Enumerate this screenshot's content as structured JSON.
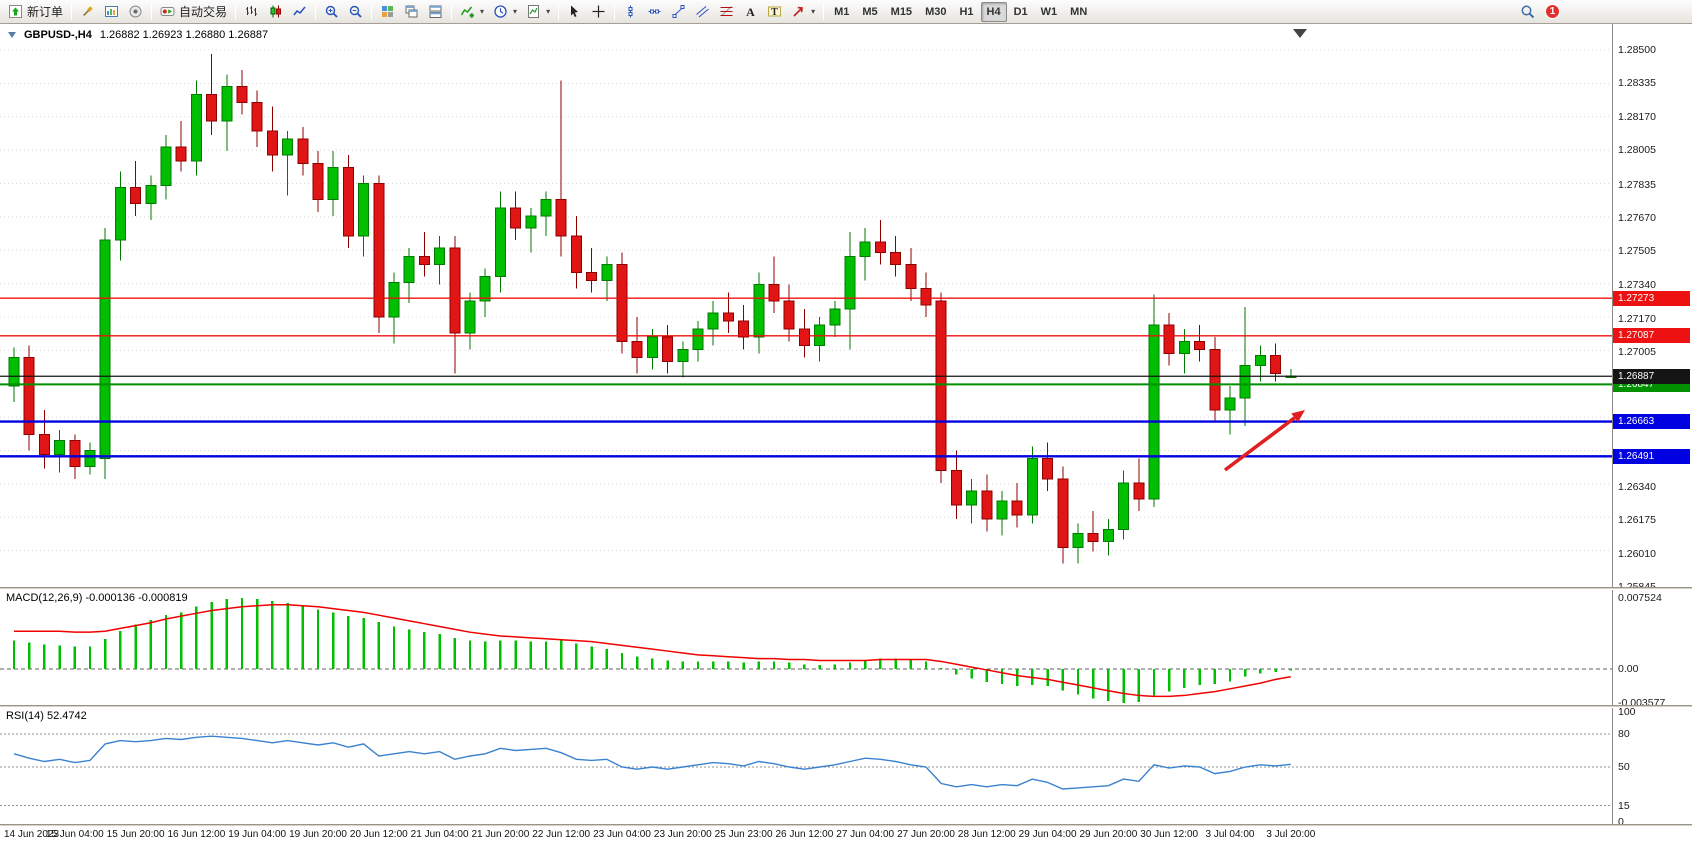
{
  "toolbar": {
    "new_order_label": "新订单",
    "auto_trading_label": "自动交易",
    "notification_count": "1",
    "timeframes": [
      {
        "label": "M1",
        "active": false
      },
      {
        "label": "M5",
        "active": false
      },
      {
        "label": "M15",
        "active": false
      },
      {
        "label": "M30",
        "active": false
      },
      {
        "label": "H1",
        "active": false
      },
      {
        "label": "H4",
        "active": true
      },
      {
        "label": "D1",
        "active": false
      },
      {
        "label": "W1",
        "active": false
      },
      {
        "label": "MN",
        "active": false
      }
    ]
  },
  "chart": {
    "title_symbol": "GBPUSD-,H4",
    "title_ohlc": "1.26882 1.26923 1.26880 1.26887"
  },
  "indicators": {
    "macd_label": "MACD(12,26,9) -0.000136 -0.000819",
    "rsi_label": "RSI(14) 52.4742"
  },
  "chart_data": {
    "type": "candlestick",
    "symbol": "GBPUSD-",
    "timeframe": "H4",
    "current_ohlc": [
      1.26882,
      1.26923,
      1.2688,
      1.26887
    ],
    "price_range": {
      "top": 1.285,
      "bottom": 1.25845
    },
    "price_axis_labels": [
      "1.28500",
      "1.28335",
      "1.28170",
      "1.28005",
      "1.27835",
      "1.27670",
      "1.27505",
      "1.27340",
      "1.27170",
      "1.27005",
      "1.26340",
      "1.26175",
      "1.26010",
      "1.25845"
    ],
    "price_lines": [
      {
        "price": 1.27273,
        "label": "1.27273",
        "color": "#ee1111",
        "width": 1.4
      },
      {
        "price": 1.27087,
        "label": "1.27087",
        "color": "#ee1111",
        "width": 1.4
      },
      {
        "price": 1.26847,
        "label": "1.26847",
        "color": "#009000",
        "width": 2
      },
      {
        "price": 1.26887,
        "label": "1.26887",
        "color": "#151515",
        "width": 1.2
      },
      {
        "price": 1.26663,
        "label": "1.26663",
        "color": "#0000e0",
        "width": 2.4
      },
      {
        "price": 1.26491,
        "label": "1.26491",
        "color": "#0000e0",
        "width": 2.4
      }
    ],
    "time_labels": [
      "14 Jun 2023",
      "15 Jun 04:00",
      "15 Jun 20:00",
      "16 Jun 12:00",
      "19 Jun 04:00",
      "19 Jun 20:00",
      "20 Jun 12:00",
      "21 Jun 04:00",
      "21 Jun 20:00",
      "22 Jun 12:00",
      "23 Jun 04:00",
      "23 Jun 20:00",
      "25 Jun 23:00",
      "26 Jun 12:00",
      "27 Jun 04:00",
      "27 Jun 20:00",
      "28 Jun 12:00",
      "29 Jun 04:00",
      "29 Jun 20:00",
      "30 Jun 12:00",
      "3 Jul 04:00",
      "3 Jul 20:00"
    ],
    "candles": [
      [
        1.2684,
        1.2703,
        1.2676,
        1.2698
      ],
      [
        1.2698,
        1.2704,
        1.2652,
        1.266
      ],
      [
        1.266,
        1.2672,
        1.2643,
        1.265
      ],
      [
        1.265,
        1.2662,
        1.2641,
        1.2657
      ],
      [
        1.2657,
        1.266,
        1.2638,
        1.2644
      ],
      [
        1.2644,
        1.2656,
        1.264,
        1.2652
      ],
      [
        1.2648,
        1.2762,
        1.2638,
        1.2756
      ],
      [
        1.2756,
        1.279,
        1.2746,
        1.2782
      ],
      [
        1.2782,
        1.2795,
        1.2768,
        1.2774
      ],
      [
        1.2774,
        1.2788,
        1.2766,
        1.2783
      ],
      [
        1.2783,
        1.2808,
        1.2776,
        1.2802
      ],
      [
        1.2802,
        1.2815,
        1.279,
        1.2795
      ],
      [
        1.2795,
        1.2835,
        1.2788,
        1.2828
      ],
      [
        1.2828,
        1.2848,
        1.2808,
        1.2815
      ],
      [
        1.2815,
        1.2838,
        1.28,
        1.2832
      ],
      [
        1.2832,
        1.284,
        1.2818,
        1.2824
      ],
      [
        1.2824,
        1.283,
        1.2802,
        1.281
      ],
      [
        1.281,
        1.2822,
        1.279,
        1.2798
      ],
      [
        1.2798,
        1.281,
        1.2778,
        1.2806
      ],
      [
        1.2806,
        1.2812,
        1.2788,
        1.2794
      ],
      [
        1.2794,
        1.28,
        1.277,
        1.2776
      ],
      [
        1.2776,
        1.28,
        1.2768,
        1.2792
      ],
      [
        1.2792,
        1.2798,
        1.2752,
        1.2758
      ],
      [
        1.2758,
        1.2788,
        1.2748,
        1.2784
      ],
      [
        1.2784,
        1.2788,
        1.271,
        1.2718
      ],
      [
        1.2718,
        1.274,
        1.2705,
        1.2735
      ],
      [
        1.2735,
        1.2752,
        1.2725,
        1.2748
      ],
      [
        1.2748,
        1.276,
        1.2738,
        1.2744
      ],
      [
        1.2744,
        1.2758,
        1.2734,
        1.2752
      ],
      [
        1.2752,
        1.2758,
        1.269,
        1.271
      ],
      [
        1.271,
        1.273,
        1.2702,
        1.2726
      ],
      [
        1.2726,
        1.2742,
        1.2718,
        1.2738
      ],
      [
        1.2738,
        1.278,
        1.273,
        1.2772
      ],
      [
        1.2772,
        1.278,
        1.2756,
        1.2762
      ],
      [
        1.2762,
        1.2772,
        1.275,
        1.2768
      ],
      [
        1.2768,
        1.278,
        1.2758,
        1.2776
      ],
      [
        1.2776,
        1.2835,
        1.2748,
        1.2758
      ],
      [
        1.2758,
        1.2768,
        1.2732,
        1.274
      ],
      [
        1.274,
        1.2752,
        1.273,
        1.2736
      ],
      [
        1.2736,
        1.2748,
        1.2726,
        1.2744
      ],
      [
        1.2744,
        1.275,
        1.27,
        1.2706
      ],
      [
        1.2706,
        1.2718,
        1.269,
        1.2698
      ],
      [
        1.2698,
        1.2712,
        1.2692,
        1.2708
      ],
      [
        1.2708,
        1.2714,
        1.269,
        1.2696
      ],
      [
        1.2696,
        1.2706,
        1.2688,
        1.2702
      ],
      [
        1.2702,
        1.2716,
        1.2696,
        1.2712
      ],
      [
        1.2712,
        1.2726,
        1.2704,
        1.272
      ],
      [
        1.272,
        1.273,
        1.271,
        1.2716
      ],
      [
        1.2716,
        1.2724,
        1.2702,
        1.2708
      ],
      [
        1.2708,
        1.274,
        1.27,
        1.2734
      ],
      [
        1.2734,
        1.2748,
        1.272,
        1.2726
      ],
      [
        1.2726,
        1.2734,
        1.2706,
        1.2712
      ],
      [
        1.2712,
        1.2722,
        1.2698,
        1.2704
      ],
      [
        1.2704,
        1.2718,
        1.2696,
        1.2714
      ],
      [
        1.2714,
        1.2726,
        1.2708,
        1.2722
      ],
      [
        1.2722,
        1.276,
        1.2702,
        1.2748
      ],
      [
        1.2748,
        1.2762,
        1.2736,
        1.2755
      ],
      [
        1.2755,
        1.2766,
        1.2744,
        1.275
      ],
      [
        1.275,
        1.2758,
        1.2738,
        1.2744
      ],
      [
        1.2744,
        1.2752,
        1.2726,
        1.2732
      ],
      [
        1.2732,
        1.274,
        1.2718,
        1.2724
      ],
      [
        1.2726,
        1.273,
        1.2636,
        1.2642
      ],
      [
        1.2642,
        1.2652,
        1.2618,
        1.2625
      ],
      [
        1.2625,
        1.2638,
        1.2616,
        1.2632
      ],
      [
        1.2632,
        1.264,
        1.2612,
        1.2618
      ],
      [
        1.2618,
        1.2632,
        1.261,
        1.2627
      ],
      [
        1.2627,
        1.2636,
        1.2614,
        1.262
      ],
      [
        1.262,
        1.2654,
        1.2616,
        1.2648
      ],
      [
        1.2648,
        1.2656,
        1.2632,
        1.2638
      ],
      [
        1.2638,
        1.2644,
        1.2596,
        1.2604
      ],
      [
        1.2604,
        1.2616,
        1.2596,
        1.2611
      ],
      [
        1.2611,
        1.2622,
        1.2602,
        1.2607
      ],
      [
        1.2607,
        1.2618,
        1.26,
        1.2613
      ],
      [
        1.2613,
        1.2642,
        1.2608,
        1.2636
      ],
      [
        1.2636,
        1.2648,
        1.2622,
        1.2628
      ],
      [
        1.2628,
        1.2729,
        1.2624,
        1.2714
      ],
      [
        1.2714,
        1.272,
        1.2694,
        1.27
      ],
      [
        1.27,
        1.2712,
        1.269,
        1.2706
      ],
      [
        1.2706,
        1.2714,
        1.2696,
        1.2702
      ],
      [
        1.2702,
        1.2708,
        1.2666,
        1.2672
      ],
      [
        1.2672,
        1.2684,
        1.266,
        1.2678
      ],
      [
        1.2678,
        1.2723,
        1.2664,
        1.2694
      ],
      [
        1.2694,
        1.2704,
        1.2686,
        1.2699
      ],
      [
        1.2699,
        1.2705,
        1.2686,
        1.269
      ],
      [
        1.26882,
        1.26923,
        1.2688,
        1.26887
      ]
    ],
    "macd": {
      "axis_labels": [
        "0.007524",
        "0.00",
        "-0.003577"
      ],
      "zero_level": 0,
      "histogram": [
        0.003,
        0.0028,
        0.0026,
        0.0025,
        0.0024,
        0.0024,
        0.0032,
        0.004,
        0.0047,
        0.0052,
        0.0057,
        0.006,
        0.0066,
        0.0071,
        0.0074,
        0.00752,
        0.0074,
        0.0072,
        0.007,
        0.0067,
        0.0063,
        0.006,
        0.0056,
        0.0054,
        0.005,
        0.0045,
        0.0042,
        0.0039,
        0.0037,
        0.0033,
        0.003,
        0.0029,
        0.003,
        0.003,
        0.0029,
        0.0029,
        0.003,
        0.0027,
        0.0024,
        0.0021,
        0.0017,
        0.0013,
        0.0011,
        0.0009,
        0.0008,
        0.0008,
        0.0008,
        0.0008,
        0.0007,
        0.0008,
        0.0008,
        0.0007,
        0.0005,
        0.0004,
        0.0005,
        0.0007,
        0.0009,
        0.0011,
        0.0011,
        0.001,
        0.0008,
        0.0001,
        -0.0006,
        -0.001,
        -0.0014,
        -0.0016,
        -0.0018,
        -0.0017,
        -0.0018,
        -0.0023,
        -0.0027,
        -0.0031,
        -0.0034,
        -0.00358,
        -0.0035,
        -0.0028,
        -0.0024,
        -0.002,
        -0.0017,
        -0.0016,
        -0.0013,
        -0.0008,
        -0.0005,
        -0.0003,
        -0.000136
      ],
      "signal": [
        0.004,
        0.004,
        0.004,
        0.004,
        0.0039,
        0.0039,
        0.004,
        0.0043,
        0.0046,
        0.0049,
        0.0053,
        0.0056,
        0.0059,
        0.0062,
        0.0064,
        0.0066,
        0.0067,
        0.0068,
        0.0068,
        0.0067,
        0.0066,
        0.0064,
        0.0062,
        0.006,
        0.0057,
        0.0054,
        0.0051,
        0.0048,
        0.0045,
        0.0042,
        0.0039,
        0.0037,
        0.0035,
        0.0034,
        0.0033,
        0.0032,
        0.0031,
        0.003,
        0.0029,
        0.0027,
        0.0025,
        0.0023,
        0.0021,
        0.0019,
        0.0017,
        0.0015,
        0.0014,
        0.0013,
        0.0012,
        0.0011,
        0.0011,
        0.001,
        0.001,
        0.0009,
        0.0009,
        0.0009,
        0.0009,
        0.001,
        0.001,
        0.001,
        0.001,
        0.0008,
        0.0005,
        0.0002,
        -0.0001,
        -0.0004,
        -0.0007,
        -0.0009,
        -0.0011,
        -0.0014,
        -0.0017,
        -0.002,
        -0.0023,
        -0.0026,
        -0.0028,
        -0.0029,
        -0.0029,
        -0.0028,
        -0.0026,
        -0.0024,
        -0.0021,
        -0.0018,
        -0.0015,
        -0.0011,
        -0.000819
      ]
    },
    "rsi": {
      "axis_labels": [
        "100",
        "80",
        "50",
        "15",
        "0"
      ],
      "levels": [
        80,
        50,
        15
      ],
      "values": [
        62,
        58,
        55,
        57,
        54,
        56,
        71,
        74,
        73,
        74,
        76,
        75,
        77,
        78,
        77,
        76,
        74,
        72,
        74,
        72,
        70,
        72,
        68,
        71,
        60,
        62,
        64,
        62,
        64,
        57,
        60,
        62,
        67,
        65,
        66,
        67,
        63,
        57,
        56,
        57,
        50,
        48,
        50,
        48,
        50,
        52,
        54,
        53,
        51,
        55,
        53,
        50,
        48,
        50,
        52,
        55,
        58,
        57,
        55,
        52,
        50,
        35,
        32,
        34,
        32,
        34,
        33,
        39,
        36,
        30,
        31,
        32,
        33,
        39,
        37,
        52,
        49,
        51,
        50,
        44,
        46,
        50,
        52,
        51,
        52.47
      ]
    },
    "colors": {
      "up": "#00be00",
      "up_border": "#007a00",
      "down": "#e01515",
      "down_border": "#8e0000",
      "macd_hist": "#00be00",
      "macd_signal": "#f00000",
      "rsi_line": "#3a82d0",
      "grid": "#dcdcdc"
    },
    "annotation_arrow": {
      "from": [
        1225,
        470
      ],
      "to": [
        1305,
        410
      ],
      "color": "#e02020"
    }
  }
}
